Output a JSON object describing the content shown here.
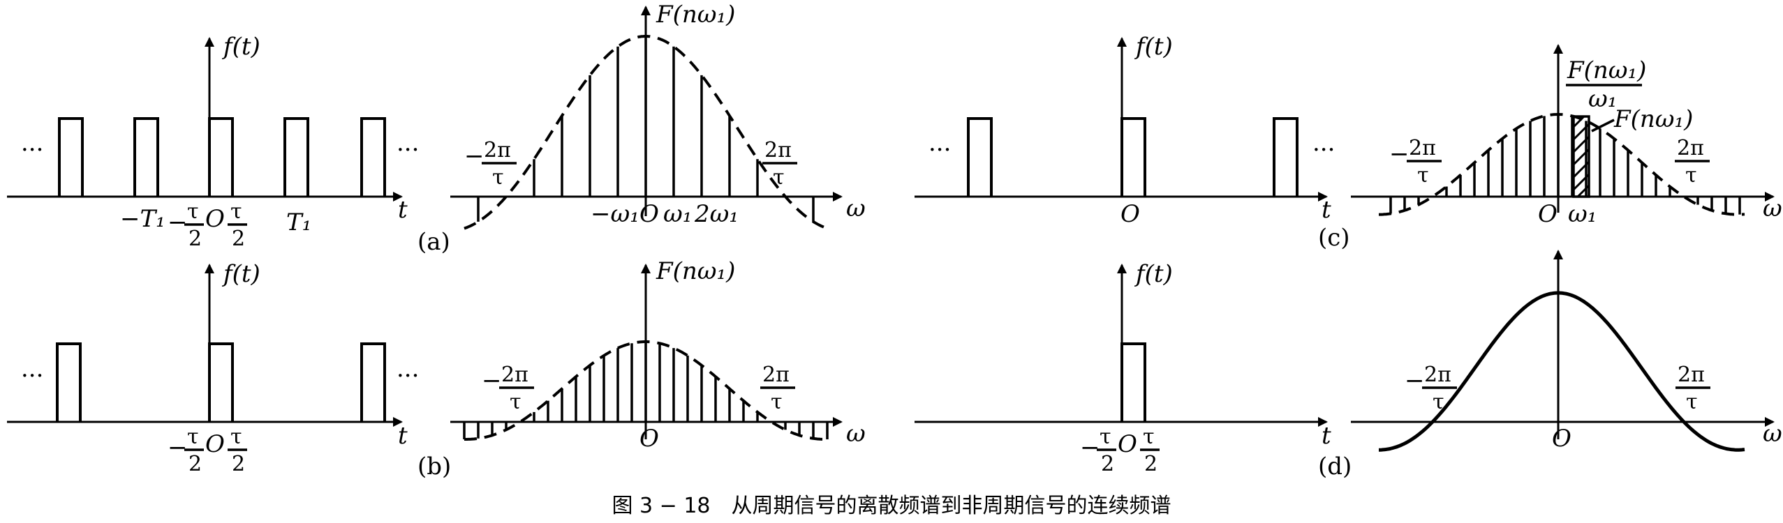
{
  "caption": "图 3 − 18　从周期信号的离散频谱到非周期信号的连续频谱",
  "labels": {
    "ft": "f(t)",
    "Fnw": "F(nω₁)",
    "Fnw_over": "F(nω₁)",
    "w1_den": "ω₁",
    "t": "t",
    "omega": "ω",
    "O": "O",
    "dots": "···",
    "neg_T1": "−T₁",
    "T1": "T₁",
    "two_pi": "2π",
    "neg": "−",
    "tau": "τ",
    "two": "2",
    "neg_w1": "−ω₁",
    "w1": "ω₁",
    "two_w1": "2ω₁",
    "a": "(a)",
    "b": "(b)",
    "c": "(c)",
    "d": "(d)"
  }
}
